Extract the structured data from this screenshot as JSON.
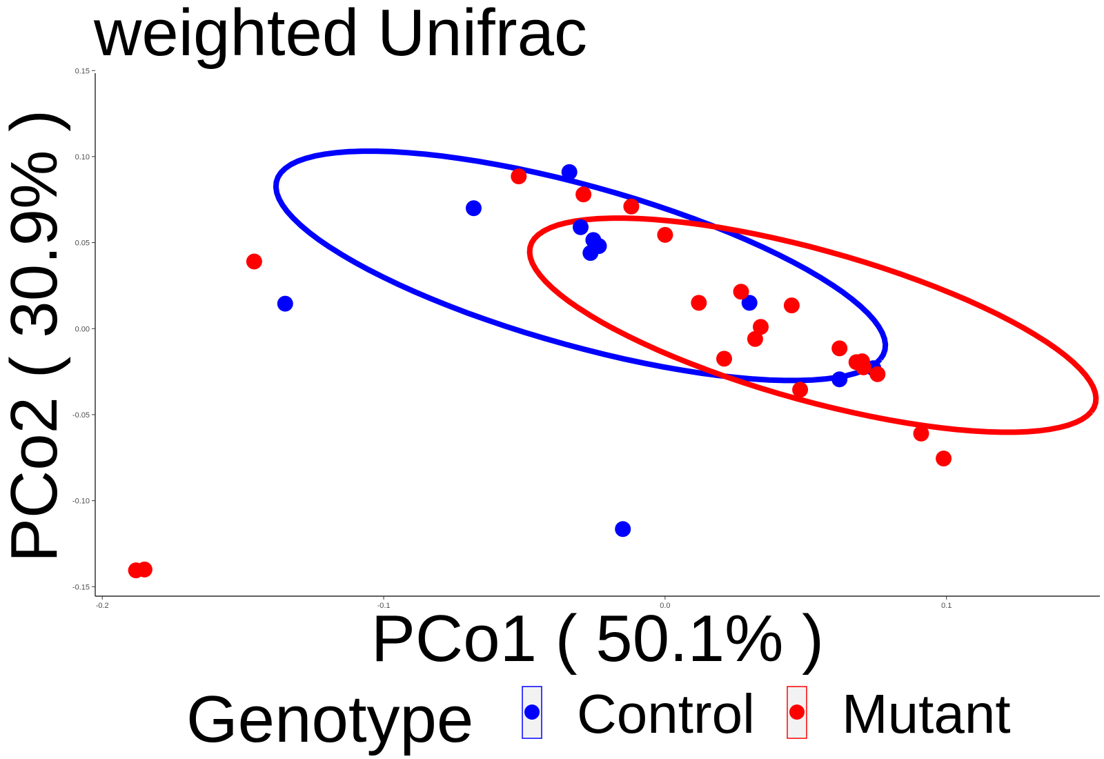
{
  "chart_data": {
    "type": "scatter",
    "title": "weighted Unifrac",
    "xlabel": "PCo1 ( 50.1% )",
    "ylabel": "PCo2 ( 30.9% )",
    "xlim": [
      -0.2025,
      0.1545
    ],
    "ylim": [
      -0.1555,
      0.1485
    ],
    "xticks": [
      -0.2,
      -0.1,
      0.0,
      0.1
    ],
    "xtick_labels": [
      "-0.2",
      "-0.1",
      "0.0",
      "0.1"
    ],
    "yticks": [
      -0.15,
      -0.1,
      -0.05,
      0.0,
      0.05,
      0.1,
      0.15
    ],
    "ytick_labels": [
      "-0.15",
      "-0.10",
      "-0.05",
      "0.00",
      "0.05",
      "0.10",
      "0.15"
    ],
    "grid": false,
    "legend": {
      "title": "Genotype",
      "position": "bottom",
      "entries": [
        {
          "label": "Control",
          "color": "#0000ff"
        },
        {
          "label": "Mutant",
          "color": "#ff0000"
        }
      ]
    },
    "series": [
      {
        "name": "Control",
        "color": "#0000ff",
        "points": [
          {
            "x": -0.135,
            "y": 0.0145
          },
          {
            "x": -0.068,
            "y": 0.07
          },
          {
            "x": -0.034,
            "y": 0.091
          },
          {
            "x": -0.03,
            "y": 0.059
          },
          {
            "x": -0.0255,
            "y": 0.0515
          },
          {
            "x": -0.0235,
            "y": 0.048
          },
          {
            "x": -0.0265,
            "y": 0.044
          },
          {
            "x": 0.03,
            "y": 0.015
          },
          {
            "x": 0.074,
            "y": -0.023
          },
          {
            "x": 0.062,
            "y": -0.0295
          },
          {
            "x": -0.015,
            "y": -0.1165
          }
        ],
        "ellipse": {
          "cx": -0.03,
          "cy": 0.0365,
          "rx": 0.1195,
          "ry": 0.0435,
          "angle_deg": -27
        }
      },
      {
        "name": "Mutant",
        "color": "#ff0000",
        "points": [
          {
            "x": -0.146,
            "y": 0.039
          },
          {
            "x": -0.185,
            "y": -0.14
          },
          {
            "x": -0.188,
            "y": -0.1405
          },
          {
            "x": -0.052,
            "y": 0.0885
          },
          {
            "x": -0.029,
            "y": 0.078
          },
          {
            "x": -0.012,
            "y": 0.071
          },
          {
            "x": 0.0,
            "y": 0.0545
          },
          {
            "x": 0.012,
            "y": 0.015
          },
          {
            "x": 0.027,
            "y": 0.0215
          },
          {
            "x": 0.034,
            "y": 0.001
          },
          {
            "x": 0.032,
            "y": -0.006
          },
          {
            "x": 0.045,
            "y": 0.0135
          },
          {
            "x": 0.021,
            "y": -0.0175
          },
          {
            "x": 0.062,
            "y": -0.0115
          },
          {
            "x": 0.068,
            "y": -0.0195
          },
          {
            "x": 0.07,
            "y": -0.019
          },
          {
            "x": 0.0705,
            "y": -0.0225
          },
          {
            "x": 0.0755,
            "y": -0.0265
          },
          {
            "x": 0.048,
            "y": -0.0355
          },
          {
            "x": 0.091,
            "y": -0.061
          },
          {
            "x": 0.099,
            "y": -0.0755
          }
        ],
        "ellipse": {
          "cx": 0.0525,
          "cy": 0.002,
          "rx": 0.111,
          "ry": 0.041,
          "angle_deg": -27
        }
      }
    ]
  }
}
